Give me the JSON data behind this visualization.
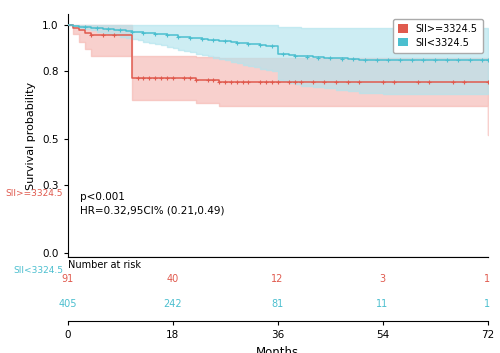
{
  "xlabel": "Months",
  "ylabel": "Survival probability",
  "xlim": [
    0,
    72
  ],
  "ylim": [
    -0.02,
    1.05
  ],
  "yticks": [
    0.0,
    0.3,
    0.5,
    0.8,
    1.0
  ],
  "annotation_text": "p<0.001\nHR=0.32,95CI% (0.21,0.49)",
  "legend_labels": [
    "SII>=3324.5",
    "SII<3324.5"
  ],
  "color_high": "#E05A4E",
  "color_low": "#4BBFCF",
  "color_high_fill": "#F5B8B2",
  "color_low_fill": "#B2E4EE",
  "risk_times": [
    0,
    18,
    36,
    54,
    72
  ],
  "risk_high": [
    91,
    40,
    12,
    3,
    1
  ],
  "risk_low": [
    405,
    242,
    81,
    11,
    1
  ],
  "high_times": [
    0,
    1,
    2,
    3,
    4,
    5,
    6,
    7,
    8,
    9,
    10,
    11,
    12,
    13,
    14,
    15,
    16,
    17,
    18,
    19,
    20,
    21,
    22,
    23,
    24,
    25,
    26,
    27,
    28,
    29,
    30,
    31,
    32,
    33,
    34,
    35,
    36,
    37,
    38,
    39,
    40,
    42,
    44,
    46,
    48,
    50,
    54,
    56,
    60,
    62,
    66,
    68,
    72
  ],
  "high_surv": [
    1.0,
    0.989,
    0.978,
    0.967,
    0.956,
    0.956,
    0.956,
    0.956,
    0.956,
    0.956,
    0.956,
    0.769,
    0.769,
    0.769,
    0.769,
    0.769,
    0.769,
    0.769,
    0.769,
    0.769,
    0.769,
    0.769,
    0.76,
    0.76,
    0.76,
    0.76,
    0.751,
    0.751,
    0.751,
    0.751,
    0.751,
    0.751,
    0.751,
    0.751,
    0.751,
    0.751,
    0.751,
    0.751,
    0.751,
    0.751,
    0.751,
    0.751,
    0.751,
    0.751,
    0.751,
    0.751,
    0.751,
    0.751,
    0.751,
    0.751,
    0.751,
    0.751,
    0.751
  ],
  "high_lower": [
    1.0,
    0.962,
    0.929,
    0.896,
    0.864,
    0.864,
    0.864,
    0.864,
    0.864,
    0.864,
    0.864,
    0.671,
    0.671,
    0.671,
    0.671,
    0.671,
    0.671,
    0.671,
    0.671,
    0.671,
    0.671,
    0.671,
    0.658,
    0.658,
    0.658,
    0.658,
    0.644,
    0.644,
    0.644,
    0.644,
    0.644,
    0.644,
    0.644,
    0.644,
    0.644,
    0.644,
    0.644,
    0.644,
    0.644,
    0.644,
    0.644,
    0.644,
    0.644,
    0.644,
    0.644,
    0.644,
    0.644,
    0.644,
    0.644,
    0.644,
    0.644,
    0.644,
    0.52
  ],
  "high_upper": [
    1.0,
    1.0,
    1.0,
    1.0,
    1.0,
    1.0,
    1.0,
    1.0,
    1.0,
    1.0,
    1.0,
    0.867,
    0.867,
    0.867,
    0.867,
    0.867,
    0.867,
    0.867,
    0.867,
    0.867,
    0.867,
    0.867,
    0.862,
    0.862,
    0.862,
    0.862,
    0.858,
    0.858,
    0.858,
    0.858,
    0.858,
    0.858,
    0.858,
    0.858,
    0.858,
    0.858,
    0.858,
    0.858,
    0.858,
    0.858,
    0.858,
    0.858,
    0.858,
    0.858,
    0.858,
    0.858,
    0.858,
    0.858,
    0.858,
    0.858,
    0.858,
    0.858,
    0.858
  ],
  "low_times": [
    0,
    1,
    2,
    3,
    4,
    5,
    6,
    7,
    8,
    9,
    10,
    11,
    12,
    13,
    14,
    15,
    16,
    17,
    18,
    19,
    20,
    21,
    22,
    23,
    24,
    25,
    26,
    27,
    28,
    29,
    30,
    31,
    32,
    33,
    34,
    35,
    36,
    37,
    38,
    39,
    40,
    42,
    44,
    46,
    48,
    50,
    54,
    56,
    60,
    62,
    66,
    68,
    72
  ],
  "low_surv": [
    1.0,
    0.9975,
    0.995,
    0.993,
    0.99,
    0.988,
    0.985,
    0.983,
    0.981,
    0.978,
    0.976,
    0.973,
    0.971,
    0.968,
    0.966,
    0.963,
    0.961,
    0.958,
    0.956,
    0.951,
    0.948,
    0.946,
    0.943,
    0.941,
    0.938,
    0.935,
    0.933,
    0.93,
    0.927,
    0.925,
    0.922,
    0.919,
    0.917,
    0.914,
    0.911,
    0.909,
    0.876,
    0.873,
    0.87,
    0.867,
    0.864,
    0.861,
    0.858,
    0.855,
    0.853,
    0.85,
    0.847,
    0.847,
    0.847,
    0.847,
    0.847,
    0.847,
    0.847
  ],
  "low_lower": [
    1.0,
    0.994,
    0.988,
    0.983,
    0.978,
    0.973,
    0.967,
    0.962,
    0.957,
    0.951,
    0.946,
    0.94,
    0.935,
    0.929,
    0.924,
    0.918,
    0.913,
    0.907,
    0.901,
    0.894,
    0.888,
    0.882,
    0.876,
    0.87,
    0.864,
    0.858,
    0.852,
    0.846,
    0.84,
    0.834,
    0.828,
    0.822,
    0.816,
    0.81,
    0.804,
    0.798,
    0.76,
    0.754,
    0.748,
    0.742,
    0.735,
    0.729,
    0.723,
    0.716,
    0.71,
    0.704,
    0.697,
    0.697,
    0.697,
    0.697,
    0.697,
    0.697,
    0.697
  ],
  "low_upper": [
    1.0,
    1.0,
    1.0,
    1.0,
    1.0,
    1.0,
    1.0,
    1.0,
    1.0,
    1.0,
    1.0,
    1.0,
    1.0,
    1.0,
    1.0,
    1.0,
    1.0,
    1.0,
    1.0,
    1.0,
    1.0,
    1.0,
    1.0,
    1.0,
    1.0,
    1.0,
    1.0,
    1.0,
    1.0,
    1.0,
    1.0,
    1.0,
    1.0,
    1.0,
    1.0,
    1.0,
    0.992,
    0.992,
    0.992,
    0.992,
    0.991,
    0.991,
    0.991,
    0.99,
    0.99,
    0.99,
    0.99,
    0.99,
    0.99,
    0.99,
    0.99,
    0.99,
    0.99
  ],
  "censor_high_times": [
    4,
    6,
    8,
    12,
    13,
    14,
    15,
    16,
    17,
    18,
    20,
    21,
    22,
    24,
    25,
    26,
    27,
    28,
    29,
    30,
    31,
    33,
    34,
    35,
    36,
    38,
    39,
    40,
    42,
    44,
    46,
    48,
    50,
    54,
    56,
    60,
    62,
    66,
    68,
    72
  ],
  "censor_high_surv": [
    0.956,
    0.956,
    0.956,
    0.769,
    0.769,
    0.769,
    0.769,
    0.769,
    0.769,
    0.769,
    0.769,
    0.769,
    0.76,
    0.76,
    0.76,
    0.751,
    0.751,
    0.751,
    0.751,
    0.751,
    0.751,
    0.751,
    0.751,
    0.751,
    0.751,
    0.751,
    0.751,
    0.751,
    0.751,
    0.751,
    0.751,
    0.751,
    0.751,
    0.751,
    0.751,
    0.751,
    0.751,
    0.751,
    0.751,
    0.751
  ],
  "censor_low_times": [
    3,
    5,
    7,
    9,
    11,
    13,
    15,
    17,
    19,
    21,
    23,
    25,
    27,
    29,
    31,
    33,
    35,
    37,
    39,
    41,
    43,
    45,
    47,
    49,
    51,
    53,
    55,
    57,
    59,
    61,
    63,
    65,
    67,
    69,
    71,
    72
  ],
  "censor_low_surv": [
    0.993,
    0.988,
    0.983,
    0.978,
    0.973,
    0.968,
    0.963,
    0.958,
    0.951,
    0.946,
    0.941,
    0.935,
    0.93,
    0.925,
    0.919,
    0.914,
    0.909,
    0.873,
    0.867,
    0.862,
    0.859,
    0.856,
    0.854,
    0.851,
    0.849,
    0.847,
    0.847,
    0.847,
    0.847,
    0.847,
    0.847,
    0.847,
    0.847,
    0.847,
    0.847,
    0.847
  ]
}
